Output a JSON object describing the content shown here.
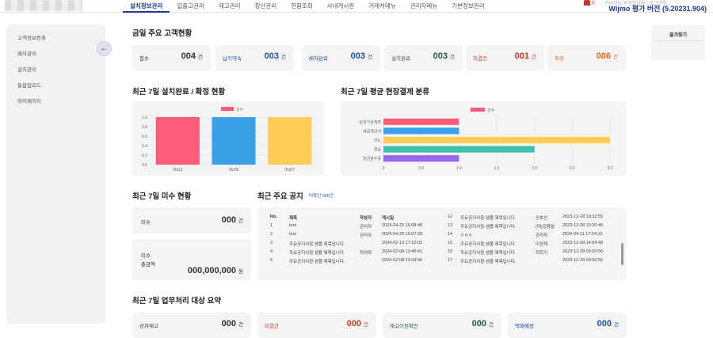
{
  "header": {
    "nav": [
      "설치정보관리",
      "입출고관리",
      "재고관리",
      "정산관리",
      "현황조회",
      "사내게시판",
      "거래처메뉴",
      "관리자메뉴",
      "기본정보관리"
    ],
    "active_nav": "설치정보관리",
    "wijmo_text": "Wijmo 평가 버전 (5.20231.904)",
    "top_note": "관리자님 환영합니다 · 로그아웃",
    "bell_count": "11"
  },
  "sidebar": {
    "items": [
      "고객정보등록",
      "배차관리",
      "설치관리",
      "통합업로드",
      "마이페이지"
    ],
    "collapse_icon": "←"
  },
  "today": {
    "title": "금일 주요 고객현황",
    "cards": [
      {
        "label": "접수",
        "value": "004",
        "unit": "건",
        "tone": "default"
      },
      {
        "label": "납기약속",
        "value": "003",
        "unit": "건",
        "tone": "blue"
      },
      {
        "label": "배차완료",
        "value": "003",
        "unit": "건",
        "tone": "blue"
      },
      {
        "label": "설치완료",
        "value": "003",
        "unit": "건",
        "tone": "green"
      },
      {
        "label": "미결건",
        "value": "001",
        "unit": "건",
        "tone": "red"
      },
      {
        "label": "확정",
        "value": "006",
        "unit": "건",
        "tone": "orange"
      }
    ]
  },
  "favorite": {
    "title": "즐겨찾기"
  },
  "chart_data": [
    {
      "type": "bar",
      "title": "최근 7일 설치완료 / 확정 현황",
      "categories": [
        "05/13",
        "05/08",
        "05/07"
      ],
      "series": [
        {
          "name": "건수",
          "values": [
            1.0,
            1.0,
            1.0
          ]
        }
      ],
      "colors": [
        "#ff5c7c",
        "#3aa0e8",
        "#ffcc55"
      ],
      "legend": "top",
      "ylim": [
        0,
        1.0
      ],
      "yticks": [
        "0.0",
        "0.2",
        "0.4",
        "0.6",
        "0.8",
        "1.0"
      ],
      "grid": true
    },
    {
      "type": "bar",
      "orientation": "horizontal",
      "title": "최근 7일 평균 현장결제 분류",
      "categories": [
        "삼성가상계좌",
        "세금계산서",
        "카드",
        "현금",
        "현금영수증"
      ],
      "series": [
        {
          "name": "건수",
          "values": [
            1.0,
            1.0,
            3.0,
            2.0,
            1.0
          ]
        }
      ],
      "colors": [
        "#ff5c7c",
        "#3aa0e8",
        "#ffcc55",
        "#40c0b0",
        "#9966ee"
      ],
      "legend": "top",
      "xlim": [
        0,
        3.0
      ],
      "xticks": [
        "0",
        "0.5",
        "1.0",
        "1.5",
        "2.0",
        "2.5",
        "3.0"
      ],
      "grid": true
    }
  ],
  "misu": {
    "title": "최근 7일 미수 현황",
    "count_label": "미수",
    "count_value": "000",
    "count_unit": "건",
    "amount_label_1": "미수",
    "amount_label_2": "총금액",
    "amount_value": "000,000,000",
    "amount_unit": "원"
  },
  "notice": {
    "title": "최근 주요 공지",
    "unread": "미확인 000건",
    "headers": [
      "No.",
      "제목",
      "작성자",
      "게시일"
    ],
    "left_rows": [
      {
        "no": "1",
        "title": "test",
        "author": "관리자",
        "date": "2024-04-25 16:08:48"
      },
      {
        "no": "2",
        "title": "test",
        "author": "관리자",
        "date": "2024-04-25 16:07:28"
      },
      {
        "no": "3",
        "title": "주요공지사항 샘플 제목입니다.",
        "author": "",
        "date": "2024-02-13 17:10:03"
      },
      {
        "no": "4",
        "title": "주요공지사항 샘플 제목입니다.",
        "author": "최석화",
        "date": "2024-02-08 13:40:41"
      },
      {
        "no": "5",
        "title": "주요공지사항 샘플 제목입니다.",
        "author": "",
        "date": "2024-02-08 13:39:56"
      }
    ],
    "right_rows": [
      {
        "no": "12",
        "title": "주요공지사항 샘플 제목입니다.",
        "author": "안호선",
        "date": "2023-12-28 19:32:55"
      },
      {
        "no": "13",
        "title": "주요공지사항 샘플 제목입니다.",
        "author": "(대)김평월",
        "date": "2023-12-28 19:30:46"
      },
      {
        "no": "14",
        "title": "ㅇㅁㅇ",
        "author": "관리자",
        "date": "2024-04-11 17:24:15"
      },
      {
        "no": "15",
        "title": "주요공지사항 샘플 제목입니다.",
        "author": "이성재",
        "date": "2023-12-28 14:04:49"
      },
      {
        "no": "16",
        "title": "주요공지사항 샘플 제목입니다.",
        "author": "최회기",
        "date": "2023-12-28 09:00:56"
      },
      {
        "no": "17",
        "title": "주요공지사항 샘플 제목입니다.",
        "author": "",
        "date": "2023-12-28 09:00:56"
      }
    ]
  },
  "tasks": {
    "title": "최근 7일 업무처리 대상 요약",
    "cards": [
      {
        "label": "상차재고",
        "value": "000",
        "unit": "건",
        "tone": "default"
      },
      {
        "label": "미결건",
        "value": "000",
        "unit": "건",
        "tone": "red"
      },
      {
        "label": "재고이동확인",
        "value": "000",
        "unit": "건",
        "tone": "green"
      },
      {
        "label": "택배예정",
        "value": "000",
        "unit": "건",
        "tone": "blue"
      }
    ]
  }
}
